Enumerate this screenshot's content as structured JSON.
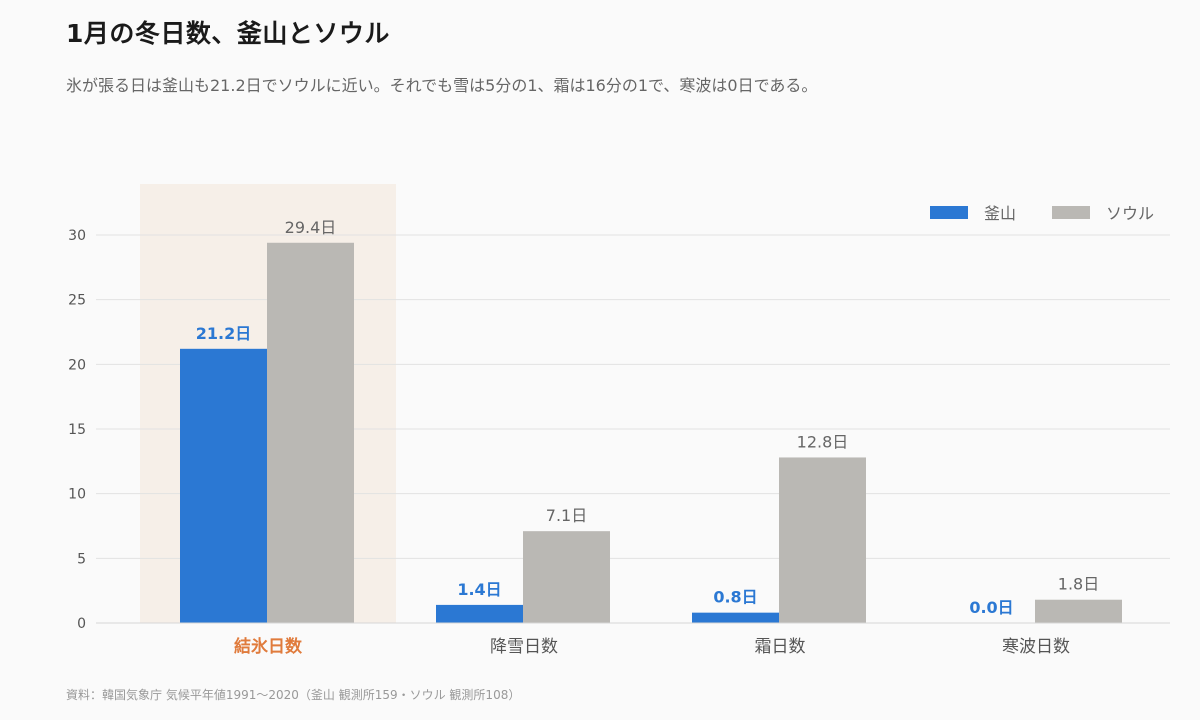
{
  "title": "1月の冬日数、釜山とソウル",
  "subtitle": "氷が張る日は釜山も21.2日でソウルに近い。それでも雪は5分の1、霜は16分の1で、寒波は0日である。",
  "source": "資料：韓国気象庁 気候平年値1991〜2020（釜山 観測所159・ソウル 観測所108）",
  "colors": {
    "busan": "#2b78d3",
    "seoul": "#bab8b4",
    "highlight_bg": "#f6efe8",
    "highlight_text": "#e07b3c",
    "grid": "#e2e2e2",
    "axis_text": "#555555"
  },
  "chart_data": {
    "type": "bar",
    "categories": [
      "結氷日数",
      "降雪日数",
      "霜日数",
      "寒波日数"
    ],
    "highlighted_category": "結氷日数",
    "series": [
      {
        "name": "釜山",
        "values": [
          21.2,
          1.4,
          0.8,
          0.0
        ],
        "labels": [
          "21.2日",
          "1.4日",
          "0.8日",
          "0.0日"
        ]
      },
      {
        "name": "ソウル",
        "values": [
          29.4,
          7.1,
          12.8,
          1.8
        ],
        "labels": [
          "29.4日",
          "7.1日",
          "12.8日",
          "1.8日"
        ]
      }
    ],
    "y_ticks": [
      "0",
      "5",
      "10",
      "15",
      "20",
      "25",
      "30"
    ],
    "ylim": [
      0,
      30
    ],
    "grid": true,
    "legend_position": "top-right"
  }
}
